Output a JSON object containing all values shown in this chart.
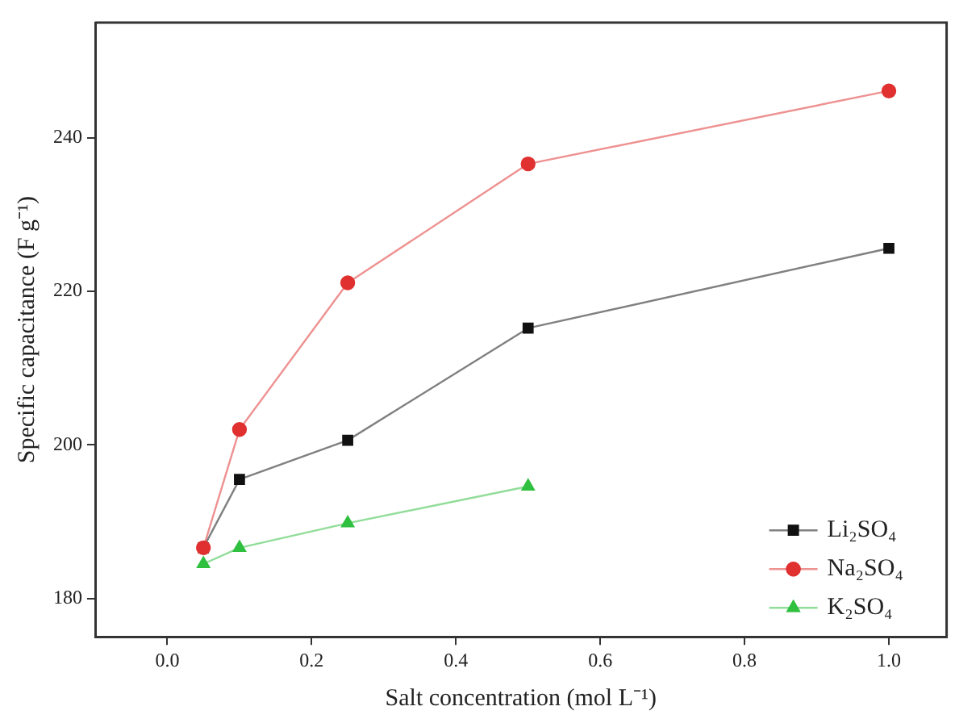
{
  "chart_data": {
    "type": "line",
    "xlabel": "Salt concentration (mol L⁻¹)",
    "ylabel": "Specific capacitance (F g⁻¹)",
    "x": [
      0.05,
      0.1,
      0.25,
      0.5,
      1.0
    ],
    "series": [
      {
        "name": "Na₂SO₄",
        "color": "#e03030",
        "marker": "circle",
        "values": [
          186.6,
          202.0,
          221.1,
          236.6,
          246.1
        ]
      },
      {
        "name": "Li₂SO₄",
        "color": "#111111",
        "marker": "square",
        "values": [
          186.6,
          195.5,
          200.6,
          215.2,
          225.6
        ]
      },
      {
        "name": "K₂SO₄",
        "color": "#30c040",
        "marker": "triangle",
        "x": [
          0.05,
          0.1,
          0.25,
          0.5
        ],
        "values": [
          184.5,
          186.6,
          189.8,
          194.6
        ]
      }
    ],
    "xlim": [
      -0.1,
      1.08
    ],
    "xticks": [
      {
        "value": 0,
        "label": "0.0"
      },
      0.2,
      0.4,
      0.6,
      0.8,
      {
        "value": 1,
        "label": "1.0"
      }
    ],
    "ylim": [
      175,
      255
    ],
    "yticks": [
      180,
      200,
      220,
      240
    ],
    "grid": false,
    "legend": "bottom right",
    "line_style": "solid"
  }
}
